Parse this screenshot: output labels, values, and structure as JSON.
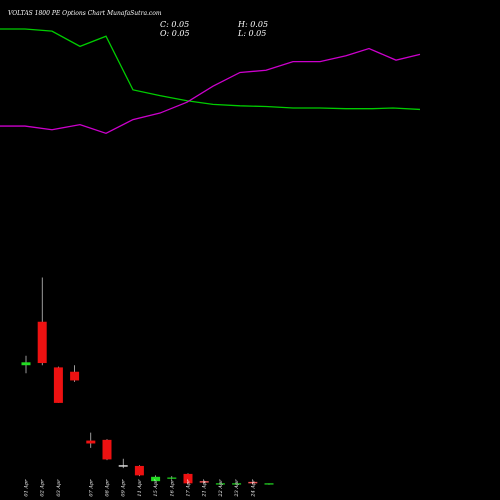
{
  "chart_data": {
    "type": "candlestick",
    "title": "VOLTAS 1800  PE Options  Chart MunafaSutra.com",
    "ohlc": {
      "close": "C: 0.05",
      "high": "H: 0.05",
      "open": "O: 0.05",
      "low": "L: 0.05"
    },
    "categories": [
      "01 Apr",
      "02 Apr",
      "03 Apr",
      "04 Apr",
      "07 Apr",
      "08 Apr",
      "09 Apr",
      "11 Apr",
      "15 Apr",
      "16 Apr",
      "17 Apr",
      "21 Apr",
      "22 Apr",
      "23 Apr",
      "24 Apr",
      "25 Apr"
    ],
    "visible_labels": [
      "01 Apr",
      "02 Apr",
      "03 Apr",
      "07 Apr",
      "08 Apr",
      "09 Apr",
      "11 Apr",
      "15 Apr",
      "16 Apr",
      "17 Apr",
      "21 Apr",
      "22 Apr",
      "23 Apr",
      "24 Apr"
    ],
    "candles": [
      {
        "date": "01 Apr",
        "open": 38.0,
        "high": 44.5,
        "low": 32.5,
        "close": 40.0,
        "color": "#22dd22"
      },
      {
        "date": "02 Apr",
        "open": 68.0,
        "high": 98.5,
        "low": 38.0,
        "close": 39.5,
        "color": "#ee1111"
      },
      {
        "date": "03 Apr",
        "open": 36.5,
        "high": 37.0,
        "low": 12.0,
        "close": 12.0,
        "color": "#ee1111"
      },
      {
        "date": "04 Apr",
        "open": 33.5,
        "high": 38.0,
        "low": 26.5,
        "close": 27.5,
        "color": "#ee1111"
      },
      {
        "date": "07 Apr",
        "open": -14.0,
        "high": -8.5,
        "low": -19.0,
        "close": -16.0,
        "color": "#ee1111"
      },
      {
        "date": "08 Apr",
        "open": -13.5,
        "high": -13.0,
        "low": -27.5,
        "close": -27.0,
        "color": "#ee1111"
      },
      {
        "date": "09 Apr",
        "open": -32.0,
        "high": -26.5,
        "low": -33.0,
        "close": -31.0,
        "color": "#dddddd"
      },
      {
        "date": "11 Apr",
        "open": -31.5,
        "high": -31.0,
        "low": -38.5,
        "close": -38.0,
        "color": "#ee1111"
      },
      {
        "date": "15 Apr",
        "open": -42.0,
        "high": -38.0,
        "low": -42.0,
        "close": -39.0,
        "color": "#22dd22"
      },
      {
        "date": "16 Apr",
        "open": -40.0,
        "high": -38.5,
        "low": -40.5,
        "close": -39.5,
        "color": "#22dd22"
      },
      {
        "date": "17 Apr",
        "open": -37.0,
        "high": -36.5,
        "low": -44.0,
        "close": -43.5,
        "color": "#ee1111"
      },
      {
        "date": "21 Apr",
        "open": -42.0,
        "high": -42.0,
        "low": -43.5,
        "close": -43.0,
        "color": "#ee5555"
      },
      {
        "date": "22 Apr",
        "open": -43.5,
        "high": -43.5,
        "low": -44.5,
        "close": -44.0,
        "color": "#22dd22"
      },
      {
        "date": "23 Apr",
        "open": -43.5,
        "high": -43.5,
        "low": -44.5,
        "close": -44.0,
        "color": "#22dd22"
      },
      {
        "date": "24 Apr",
        "open": -42.5,
        "high": -42.5,
        "low": -44.0,
        "close": -43.5,
        "color": "#ee5555"
      },
      {
        "date": "25 Apr",
        "open": -43.5,
        "high": -43.5,
        "low": -44.5,
        "close": -44.0,
        "color": "#22dd22"
      }
    ],
    "ylim": [
      -55,
      290
    ],
    "series": [
      {
        "color": "#00cc00",
        "values": [
          [
            0,
            270
          ],
          [
            25,
            270
          ],
          [
            52,
            268.5
          ],
          [
            80,
            258
          ],
          [
            106,
            265
          ],
          [
            133,
            228
          ],
          [
            160,
            224
          ],
          [
            187,
            220.5
          ],
          [
            213,
            218
          ],
          [
            240,
            217
          ],
          [
            266,
            216.5
          ],
          [
            293,
            215.5
          ],
          [
            320,
            215.5
          ],
          [
            346,
            215
          ],
          [
            372,
            215
          ],
          [
            393,
            215.5
          ],
          [
            420,
            214.5
          ]
        ]
      },
      {
        "color": "#cc00cc",
        "values": [
          [
            0,
            203
          ],
          [
            25,
            203
          ],
          [
            52,
            200.5
          ],
          [
            80,
            204
          ],
          [
            106,
            198
          ],
          [
            133,
            207.5
          ],
          [
            160,
            212
          ],
          [
            187,
            219.5
          ],
          [
            213,
            230.5
          ],
          [
            240,
            240
          ],
          [
            266,
            241.5
          ],
          [
            293,
            247.5
          ],
          [
            320,
            247.5
          ],
          [
            346,
            251.5
          ],
          [
            369,
            256.5
          ],
          [
            396,
            248.5
          ],
          [
            420,
            252.5
          ]
        ]
      }
    ],
    "grid": false
  }
}
